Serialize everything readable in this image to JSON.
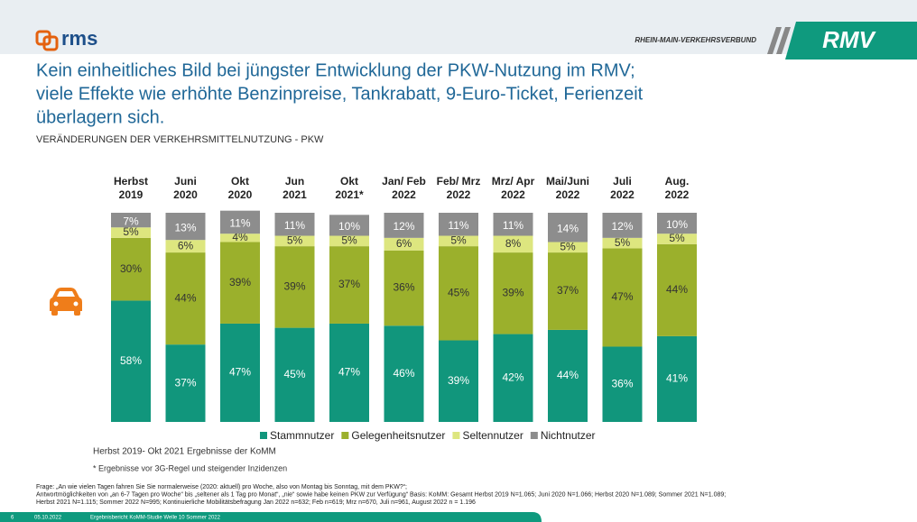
{
  "header": {
    "logo": "rms",
    "org": "RHEIN-MAIN-VERKEHRSVERBUND",
    "brand": "RMV"
  },
  "chart_data": {
    "type": "stacked_bar",
    "title": [
      "Kein einheitliches Bild bei jüngster Entwicklung der PKW-Nutzung im RMV;",
      "viele Effekte wie erhöhte Benzinpreise, Tankrabatt, 9-Euro-Ticket, Ferienzeit",
      "überlagern sich."
    ],
    "subtitle": "VERÄNDERUNGEN DER VERKEHRSMITTELNUTZUNG - PKW",
    "categories": [
      [
        "Herbst",
        "2019"
      ],
      [
        "Juni",
        "2020"
      ],
      [
        "Okt",
        "2020"
      ],
      [
        "Jun",
        "2021"
      ],
      [
        "Okt",
        "2021*"
      ],
      [
        "Jan/ Feb",
        "2022"
      ],
      [
        "Feb/ Mrz",
        "2022"
      ],
      [
        "Mrz/ Apr",
        "2022"
      ],
      [
        "Mai/Juni",
        "2022"
      ],
      [
        "Juli",
        "2022"
      ],
      [
        "Aug.",
        "2022"
      ]
    ],
    "ylim": [
      0,
      100
    ],
    "series": [
      {
        "name": "Stammnutzer",
        "color": "#11967c",
        "label_color": "#ffffff",
        "values": [
          58,
          37,
          47,
          45,
          47,
          46,
          39,
          42,
          44,
          36,
          41
        ],
        "value_labels": [
          "58%",
          "37%",
          "47%",
          "45%",
          "47%",
          "46%",
          "39%",
          "42%",
          "44%",
          "36%",
          "41%"
        ]
      },
      {
        "name": "Gelegenheitsnutzer",
        "color": "#9bb02c",
        "label_color": "#333333",
        "values": [
          30,
          44,
          39,
          39,
          37,
          36,
          45,
          39,
          37,
          47,
          44
        ],
        "value_labels": [
          "30%",
          "44%",
          "39%",
          "39%",
          "37%",
          "36%",
          "45%",
          "39%",
          "37%",
          "47%",
          "44%"
        ]
      },
      {
        "name": "Seltennutzer",
        "color": "#dde67f",
        "label_color": "#333333",
        "values": [
          5,
          6,
          4,
          5,
          5,
          6,
          5,
          8,
          5,
          5,
          5
        ],
        "value_labels": [
          "5%",
          "6%",
          "4%",
          "5%",
          "5%",
          "6%",
          "5%",
          "8%",
          "5%",
          "5%",
          "5%"
        ]
      },
      {
        "name": "Nichtnutzer",
        "color": "#8d8d8d",
        "label_color": "#ffffff",
        "values": [
          7,
          13,
          11,
          11,
          10,
          12,
          11,
          11,
          14,
          12,
          10
        ],
        "value_labels": [
          "7%",
          "13%",
          "11%",
          "11%",
          "10%",
          "12%",
          "11%",
          "11%",
          "14%",
          "12%",
          "10%"
        ]
      }
    ],
    "legend": "bottom"
  },
  "notes": [
    "Herbst 2019- Okt 2021 Ergebnisse der KoMM",
    "*  Ergebnisse vor 3G-Regel und steigender Inzidenzen"
  ],
  "footnote": [
    "Frage: „An wie vielen Tagen fahren Sie Sie normalerweise (2020: aktuell) pro Woche, also von Montag bis Sonntag, mit dem PKW?“;",
    "Antwortmöglichkeiten von „an 6-7 Tagen pro Woche“ bis „seltener als 1 Tag pro Monat“, „nie“ sowie habe keinen PKW zur Verfügung“  Basis: KoMM: Gesamt Herbst 2019 N=1.065; Juni 2020 N=1.066; Herbst 2020 N=1.089; Sommer 2021 N=1.089;",
    "Herbst 2021 N=1.115; Sommer 2022 N=995; Kontinuierliche Mobilitätsbefragung Jan 2022 n=632; Feb n=619; Mrz n=670, Juli n=961, August 2022 n = 1.196"
  ],
  "footer": {
    "page": "6",
    "date": "05.10.2022",
    "report": "Ergebnisbericht KoMM-Studie Welle 10 Sommer 2022"
  }
}
